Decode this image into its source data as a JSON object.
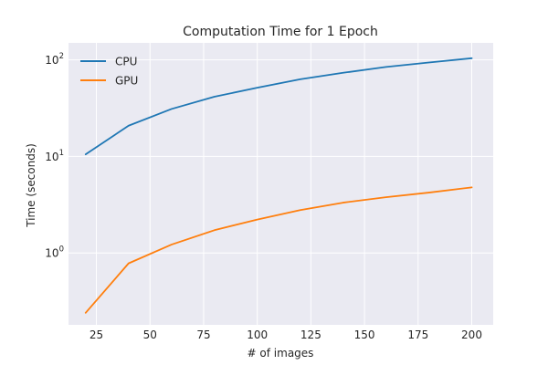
{
  "chart_data": {
    "type": "line",
    "title": "Computation Time for 1 Epoch",
    "xlabel": "# of images",
    "ylabel": "Time (seconds)",
    "yscale": "log",
    "xlim": [
      12,
      210
    ],
    "ylim": [
      0.18,
      150
    ],
    "grid": true,
    "legend_position": "top-left",
    "x": [
      20,
      40,
      60,
      80,
      100,
      120,
      140,
      160,
      180,
      200
    ],
    "x_ticks": [
      {
        "value": 25,
        "label": "25"
      },
      {
        "value": 50,
        "label": "50"
      },
      {
        "value": 75,
        "label": "75"
      },
      {
        "value": 100,
        "label": "100"
      },
      {
        "value": 125,
        "label": "125"
      },
      {
        "value": 150,
        "label": "150"
      },
      {
        "value": 175,
        "label": "175"
      },
      {
        "value": 200,
        "label": "200"
      }
    ],
    "y_ticks": [
      {
        "value": 1,
        "base": "10",
        "exp": "0"
      },
      {
        "value": 10,
        "base": "10",
        "exp": "1"
      },
      {
        "value": 100,
        "base": "10",
        "exp": "2"
      }
    ],
    "series": [
      {
        "name": "CPU",
        "color": "#1f77b4",
        "values": [
          10.5,
          20.8,
          31.0,
          41.5,
          51.5,
          63.0,
          73.5,
          84.5,
          94.0,
          104.0
        ]
      },
      {
        "name": "GPU",
        "color": "#ff7f0e",
        "values": [
          0.24,
          0.78,
          1.22,
          1.72,
          2.22,
          2.78,
          3.32,
          3.78,
          4.22,
          4.78
        ]
      }
    ]
  }
}
